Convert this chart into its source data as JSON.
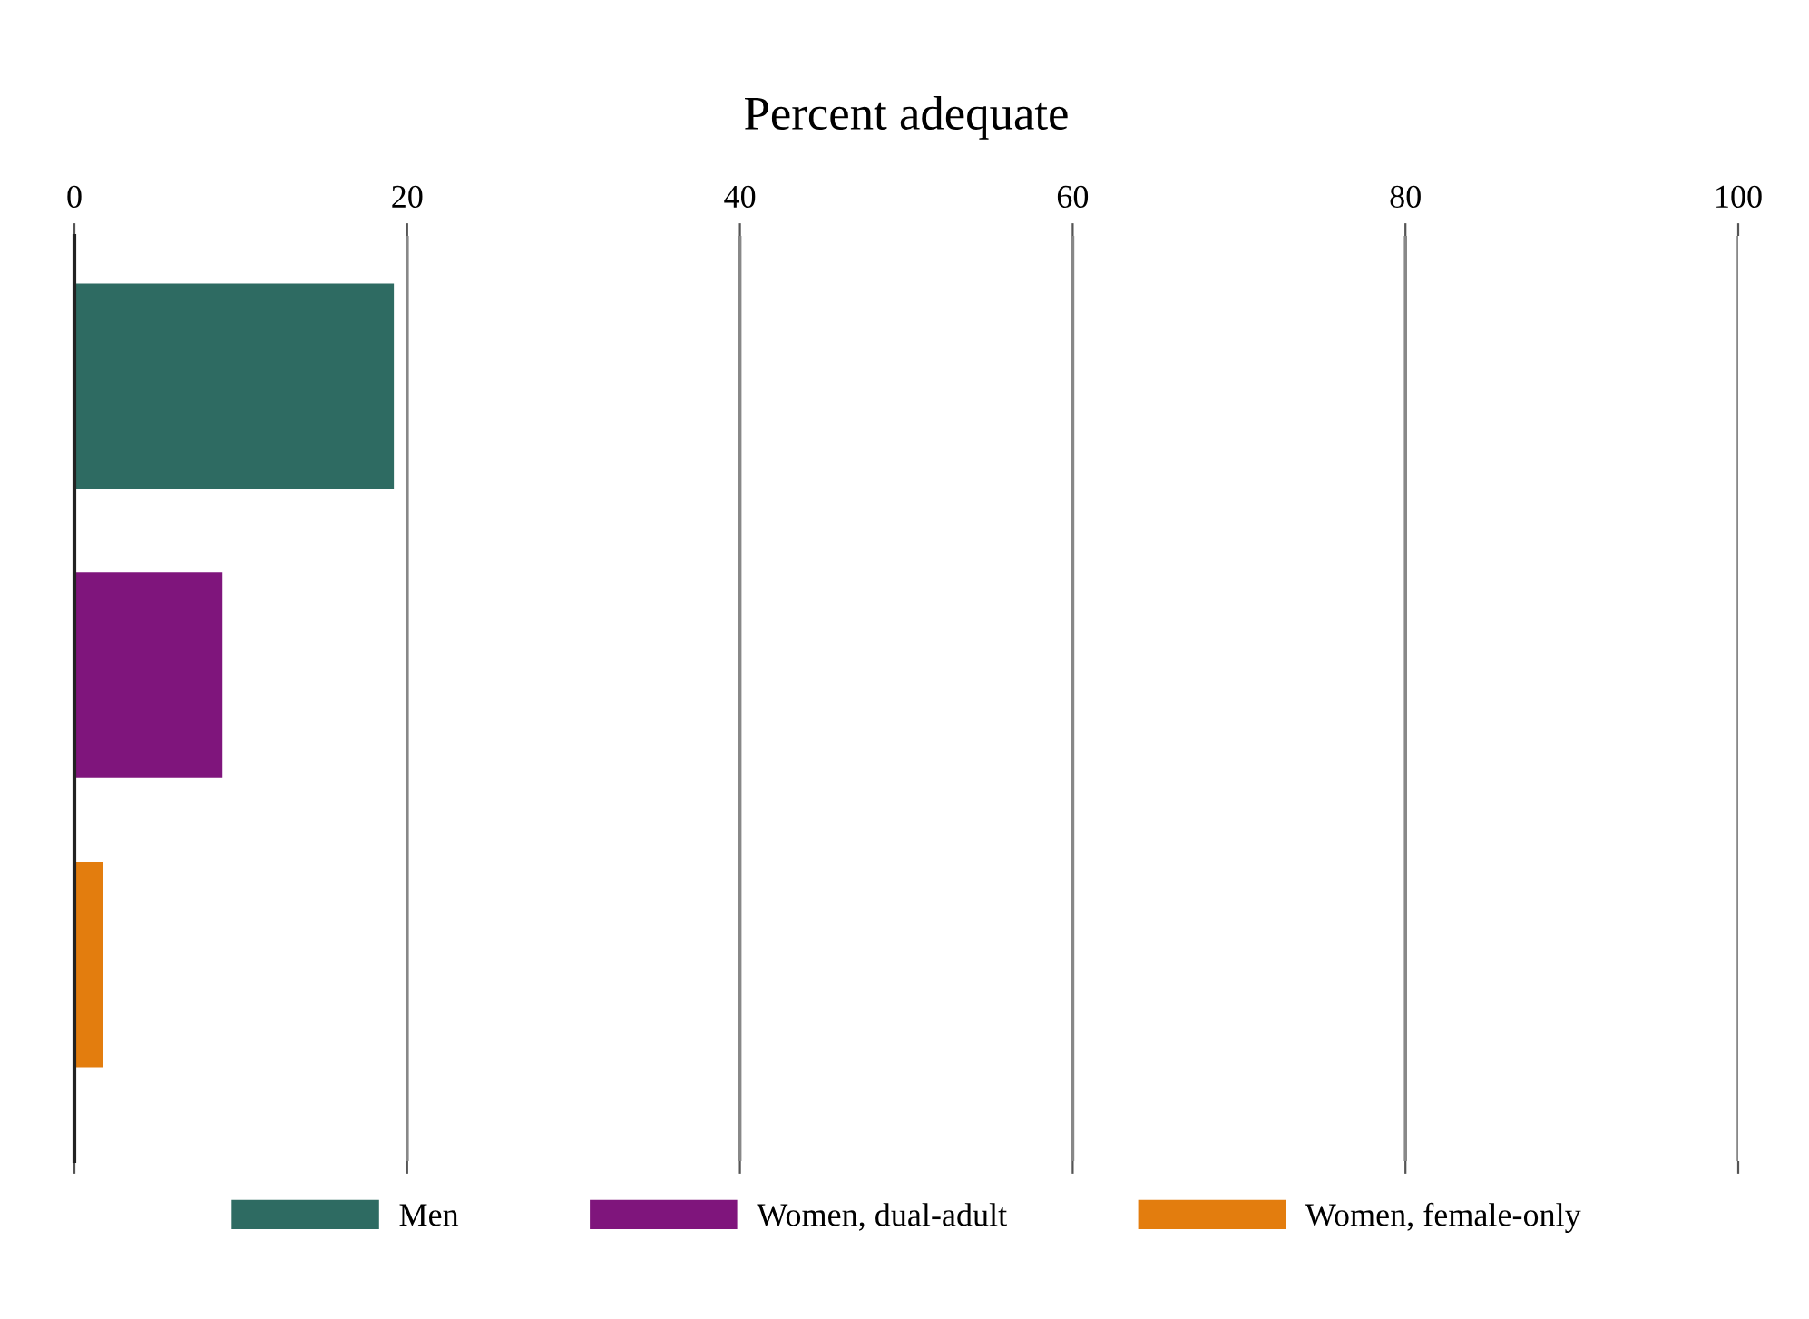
{
  "chart_data": {
    "type": "bar",
    "orientation": "horizontal",
    "xlabel": "Percent adequate",
    "categories": [
      null,
      null,
      null
    ],
    "series": [
      {
        "name": "Men",
        "color": "#2e6b62",
        "values": [
          19.2,
          null,
          null
        ]
      },
      {
        "name": "Women, dual-adult",
        "color": "#7f157c",
        "values": [
          null,
          8.9,
          null
        ]
      },
      {
        "name": "Women, female-only",
        "color": "#e37d0e",
        "values": [
          null,
          null,
          1.7
        ]
      }
    ],
    "xlim": [
      0,
      100
    ],
    "xticks": [
      0,
      20,
      40,
      60,
      80,
      100
    ],
    "grid": "x",
    "legend": "bottom"
  }
}
